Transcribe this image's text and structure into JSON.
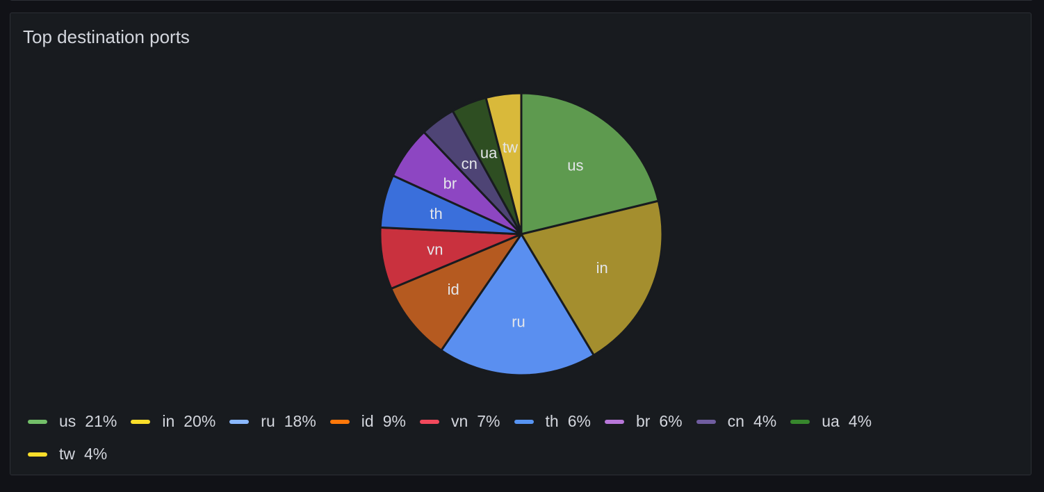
{
  "panel": {
    "title": "Top destination ports"
  },
  "chart_data": {
    "type": "pie",
    "title": "Top destination ports",
    "legend_placement": "bottom",
    "slices": [
      {
        "label": "us",
        "percent_label": "21%",
        "value": 21,
        "color": "#73bf69"
      },
      {
        "label": "in",
        "percent_label": "20%",
        "value": 20,
        "color": "#fade2a"
      },
      {
        "label": "ru",
        "percent_label": "18%",
        "value": 18,
        "color": "#8ab8ff"
      },
      {
        "label": "id",
        "percent_label": "9%",
        "value": 9,
        "color": "#ff780a"
      },
      {
        "label": "vn",
        "percent_label": "7%",
        "value": 7,
        "color": "#f2495c"
      },
      {
        "label": "th",
        "percent_label": "6%",
        "value": 6,
        "color": "#5794f2"
      },
      {
        "label": "br",
        "percent_label": "6%",
        "value": 6,
        "color": "#b877d9"
      },
      {
        "label": "cn",
        "percent_label": "4%",
        "value": 4,
        "color": "#705da0"
      },
      {
        "label": "ua",
        "percent_label": "4%",
        "value": 4,
        "color": "#37872d"
      },
      {
        "label": "tw",
        "percent_label": "4%",
        "value": 4,
        "color": "#fade2a"
      }
    ],
    "slice_fill_colors": {
      "us": "#5e9a4f",
      "in": "#a48e2e",
      "ru": "#5a8ff0",
      "id": "#b55a20",
      "vn": "#c9313e",
      "th": "#3a6fdb",
      "br": "#8d46c2",
      "cn": "#4e4475",
      "ua": "#2e4e22",
      "tw": "#d9b93a"
    }
  }
}
